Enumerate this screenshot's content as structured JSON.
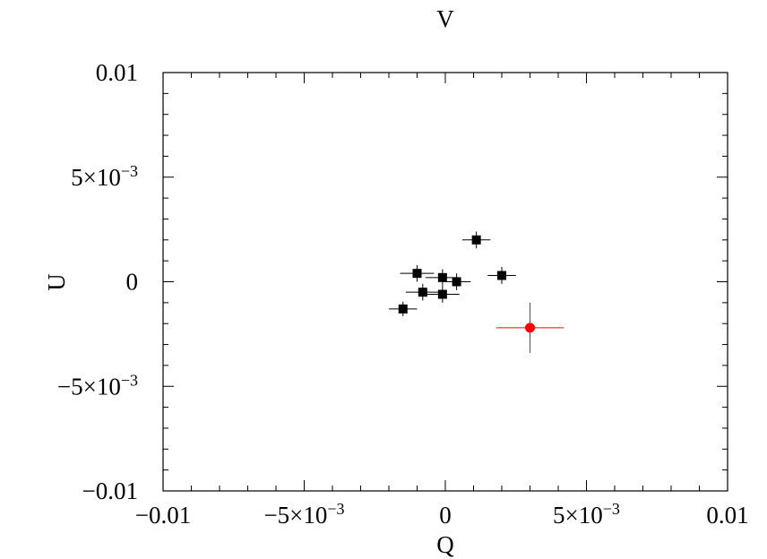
{
  "chart_data": {
    "type": "scatter",
    "title": "V",
    "xlabel": "Q",
    "ylabel": "U",
    "xlim": [
      -0.01,
      0.01
    ],
    "ylim": [
      -0.01,
      0.01
    ],
    "grid": false,
    "x_ticks": [
      {
        "value": -0.01,
        "label": "−0.01"
      },
      {
        "value": -0.005,
        "label": "−5×10",
        "exp": "−3"
      },
      {
        "value": 0,
        "label": "0"
      },
      {
        "value": 0.005,
        "label": "5×10",
        "exp": "−3"
      },
      {
        "value": 0.01,
        "label": "0.01"
      }
    ],
    "y_ticks": [
      {
        "value": 0.01,
        "label": "0.01"
      },
      {
        "value": 0.005,
        "label": "5×10",
        "exp": "−3"
      },
      {
        "value": 0,
        "label": "0"
      },
      {
        "value": -0.005,
        "label": "−5×10",
        "exp": "−3"
      },
      {
        "value": -0.01,
        "label": "−0.01"
      }
    ],
    "series": [
      {
        "marker": "square",
        "color": "#000000",
        "points": [
          {
            "x": -0.0015,
            "y": -0.0013,
            "xerr": 0.0005,
            "yerr": 0.00035
          },
          {
            "x": -0.001,
            "y": 0.0004,
            "xerr": 0.0006,
            "yerr": 0.0004
          },
          {
            "x": -0.0008,
            "y": -0.0005,
            "xerr": 0.0006,
            "yerr": 0.0004
          },
          {
            "x": -0.0001,
            "y": 0.0002,
            "xerr": 0.0006,
            "yerr": 0.0004
          },
          {
            "x": -0.0001,
            "y": -0.0006,
            "xerr": 0.0006,
            "yerr": 0.0004
          },
          {
            "x": 0.0004,
            "y": 0.0,
            "xerr": 0.0005,
            "yerr": 0.0004
          },
          {
            "x": 0.0011,
            "y": 0.002,
            "xerr": 0.0005,
            "yerr": 0.0004
          },
          {
            "x": 0.002,
            "y": 0.0003,
            "xerr": 0.0005,
            "yerr": 0.0004
          }
        ]
      },
      {
        "marker": "circle",
        "color": "#ff0000",
        "points": [
          {
            "x": 0.003,
            "y": -0.0022,
            "xerr": 0.0012,
            "yerr": 0.0012
          }
        ]
      }
    ]
  }
}
